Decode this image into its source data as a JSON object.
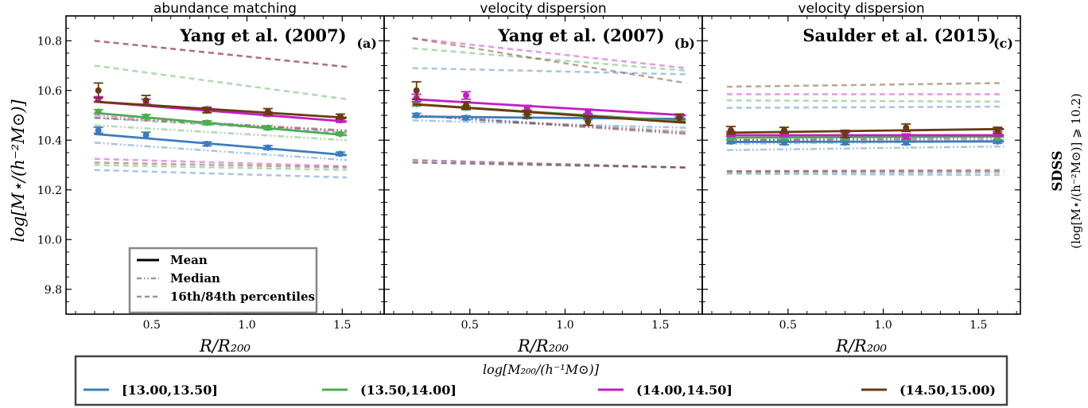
{
  "y_axis_label": "log[M⋆/(h⁻²M⊙)]",
  "right_label": {
    "title": "SDSS",
    "subtitle": "(log[M⋆/(h⁻²M⊙)] ⩾ 10.2)"
  },
  "x_axis_label": "R/R₂₀₀",
  "legend_inner": {
    "mean": "Mean",
    "median": "Median",
    "percentiles": "16th/84th percentiles"
  },
  "legend_outer": {
    "title": "log[M₂₀₀/(h⁻¹M⊙)]",
    "entries": [
      {
        "label": "[13.00,13.50]",
        "color": "#3b7cc0"
      },
      {
        "label": "(13.50,14.00]",
        "color": "#4cae4c"
      },
      {
        "label": "(14.00,14.50]",
        "color": "#c41dc4"
      },
      {
        "label": "(14.50,15.00)",
        "color": "#6b3a10"
      }
    ]
  },
  "chart_data": [
    {
      "type": "line",
      "panel_title": "abundance matching",
      "annotation": "Yang et al. (2007)",
      "panel_letter": "(a)",
      "xlim": [
        0.05,
        1.72
      ],
      "ylim": [
        9.7,
        10.9
      ],
      "xticks": [
        0.5,
        1.0,
        1.5
      ],
      "yticks": [
        9.8,
        10.0,
        10.2,
        10.4,
        10.6,
        10.8
      ],
      "show_ytick_labels": true,
      "x": [
        0.22,
        0.47,
        0.79,
        1.11,
        1.49
      ],
      "series": [
        {
          "name": "[13.00,13.50]",
          "color": "#3b7cc0",
          "points": [
            10.44,
            10.42,
            10.385,
            10.37,
            10.345
          ],
          "err": [
            0.012,
            0.012,
            0.008,
            0.008,
            0.007
          ],
          "mean_fit": [
            10.425,
            10.34
          ],
          "median": [
            10.39,
            10.32
          ],
          "p16": [
            10.28,
            10.25
          ],
          "p84": [
            10.49,
            10.43
          ]
        },
        {
          "name": "(13.50,14.00]",
          "color": "#4cae4c",
          "points": [
            10.515,
            10.495,
            10.47,
            10.45,
            10.425
          ],
          "err": [
            0.008,
            0.008,
            0.008,
            0.008,
            0.006
          ],
          "mean_fit": [
            10.51,
            10.42
          ],
          "median": [
            10.46,
            10.4
          ],
          "p16": [
            10.3,
            10.28
          ],
          "p84": [
            10.7,
            10.565
          ]
        },
        {
          "name": "(14.00,14.50]",
          "color": "#c41dc4",
          "points": [
            10.565,
            10.555,
            10.525,
            10.505,
            10.48
          ],
          "err": [
            0.01,
            0.01,
            0.008,
            0.008,
            0.008
          ],
          "mean_fit": [
            10.555,
            10.475
          ],
          "median": [
            10.5,
            10.435
          ],
          "p16": [
            10.325,
            10.295
          ],
          "p84": [
            10.8,
            10.695
          ]
        },
        {
          "name": "(14.50,15.00)",
          "color": "#6b3a10",
          "points": [
            10.6,
            10.56,
            10.52,
            10.515,
            10.495
          ],
          "err": [
            0.03,
            0.02,
            0.01,
            0.012,
            0.01
          ],
          "mean_fit": [
            10.555,
            10.49
          ],
          "median": [
            10.49,
            10.44
          ],
          "p16": [
            10.31,
            10.29
          ],
          "p84": [
            10.8,
            10.695
          ]
        }
      ]
    },
    {
      "type": "line",
      "panel_title": "velocity dispersion",
      "annotation": "Yang et al. (2007)",
      "panel_letter": "(b)",
      "xlim": [
        0.05,
        1.72
      ],
      "ylim": [
        9.7,
        10.9
      ],
      "xticks": [
        0.5,
        1.0,
        1.5
      ],
      "yticks": [
        9.8,
        10.0,
        10.2,
        10.4,
        10.6,
        10.8
      ],
      "show_ytick_labels": false,
      "x": [
        0.22,
        0.48,
        0.8,
        1.12,
        1.6
      ],
      "series": [
        {
          "name": "[13.00,13.50]",
          "color": "#3b7cc0",
          "points": [
            10.5,
            10.49,
            10.495,
            10.49,
            10.485
          ],
          "err": [
            0.008,
            0.008,
            0.008,
            0.008,
            0.008
          ],
          "mean_fit": [
            10.495,
            10.485
          ],
          "median": [
            10.48,
            10.45
          ],
          "p16": [
            10.31,
            10.29
          ],
          "p84": [
            10.69,
            10.665
          ]
        },
        {
          "name": "(13.50,14.00]",
          "color": "#4cae4c",
          "points": [
            10.545,
            10.53,
            10.51,
            10.5,
            10.48
          ],
          "err": [
            0.008,
            0.008,
            0.008,
            0.008,
            0.008
          ],
          "mean_fit": [
            10.545,
            10.475
          ],
          "median": [
            10.5,
            10.435
          ],
          "p16": [
            10.32,
            10.29
          ],
          "p84": [
            10.77,
            10.68
          ]
        },
        {
          "name": "(14.00,14.50]",
          "color": "#c41dc4",
          "points": [
            10.57,
            10.58,
            10.53,
            10.515,
            10.495
          ],
          "err": [
            0.015,
            0.015,
            0.01,
            0.01,
            0.01
          ],
          "mean_fit": [
            10.565,
            10.5
          ],
          "median": [
            10.5,
            10.43
          ],
          "p16": [
            10.32,
            10.29
          ],
          "p84": [
            10.81,
            10.69
          ]
        },
        {
          "name": "(14.50,15.00)",
          "color": "#6b3a10",
          "points": [
            10.6,
            10.54,
            10.505,
            10.475,
            10.49
          ],
          "err": [
            0.035,
            0.015,
            0.015,
            0.015,
            0.015
          ],
          "mean_fit": [
            10.545,
            10.47
          ],
          "median": [
            10.5,
            10.425
          ],
          "p16": [
            10.31,
            10.29
          ],
          "p84": [
            10.81,
            10.63
          ]
        }
      ]
    },
    {
      "type": "line",
      "panel_title": "velocity dispersion",
      "annotation": "Saulder et al. (2015)",
      "panel_letter": "(c)",
      "xlim": [
        0.05,
        1.72
      ],
      "ylim": [
        9.7,
        10.9
      ],
      "xticks": [
        0.5,
        1.0,
        1.5
      ],
      "yticks": [
        9.8,
        10.0,
        10.2,
        10.4,
        10.6,
        10.8
      ],
      "show_ytick_labels": false,
      "x": [
        0.2,
        0.48,
        0.8,
        1.12,
        1.6
      ],
      "series": [
        {
          "name": "[13.00,13.50]",
          "color": "#3b7cc0",
          "points": [
            10.395,
            10.39,
            10.39,
            10.39,
            10.395
          ],
          "err": [
            0.008,
            0.008,
            0.008,
            0.008,
            0.008
          ],
          "mean_fit": [
            10.393,
            10.395
          ],
          "median": [
            10.36,
            10.375
          ],
          "p16": [
            10.265,
            10.26
          ],
          "p84": [
            10.53,
            10.535
          ]
        },
        {
          "name": "(13.50,14.00]",
          "color": "#4cae4c",
          "points": [
            10.41,
            10.41,
            10.41,
            10.41,
            10.41
          ],
          "err": [
            0.008,
            0.008,
            0.008,
            0.008,
            0.008
          ],
          "mean_fit": [
            10.41,
            10.415
          ],
          "median": [
            10.385,
            10.395
          ],
          "p16": [
            10.27,
            10.27
          ],
          "p84": [
            10.56,
            10.555
          ]
        },
        {
          "name": "(14.00,14.50]",
          "color": "#c41dc4",
          "points": [
            10.425,
            10.425,
            10.42,
            10.415,
            10.425
          ],
          "err": [
            0.01,
            0.01,
            0.01,
            0.01,
            0.01
          ],
          "mean_fit": [
            10.42,
            10.42
          ],
          "median": [
            10.4,
            10.4
          ],
          "p16": [
            10.275,
            10.275
          ],
          "p84": [
            10.585,
            10.585
          ]
        },
        {
          "name": "(14.50,15.00)",
          "color": "#6b3a10",
          "points": [
            10.44,
            10.44,
            10.425,
            10.45,
            10.44
          ],
          "err": [
            0.015,
            0.012,
            0.015,
            0.015,
            0.012
          ],
          "mean_fit": [
            10.43,
            10.445
          ],
          "median": [
            10.4,
            10.41
          ],
          "p16": [
            10.275,
            10.28
          ],
          "p84": [
            10.615,
            10.63
          ]
        }
      ]
    }
  ]
}
